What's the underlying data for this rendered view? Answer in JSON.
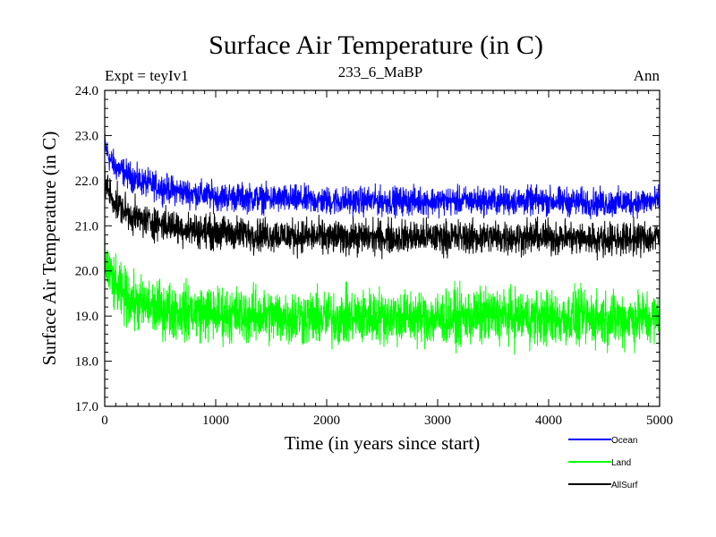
{
  "chart_data": {
    "type": "line",
    "title": "Surface Air Temperature (in C)",
    "subtitle_left": "Expt = teyIv1",
    "subtitle_center": "233_6_MaBP",
    "subtitle_right": "Ann",
    "xlabel": "Time (in years since start)",
    "ylabel": "Surface Air Temperature (in C)",
    "xlim": [
      0,
      5000
    ],
    "ylim": [
      17.0,
      24.0
    ],
    "xticks": [
      0,
      1000,
      2000,
      3000,
      4000,
      5000
    ],
    "xtick_labels": [
      "0",
      "1000",
      "2000",
      "3000",
      "4000",
      "5000"
    ],
    "yticks": [
      17.0,
      18.0,
      19.0,
      20.0,
      21.0,
      22.0,
      23.0,
      24.0
    ],
    "ytick_labels": [
      "17.0",
      "18.0",
      "19.0",
      "20.0",
      "21.0",
      "22.0",
      "23.0",
      "24.0"
    ],
    "legend_position": "below-right",
    "series": [
      {
        "name": "Ocean",
        "color": "#0000ff",
        "x": [
          0,
          50,
          100,
          200,
          300,
          500,
          700,
          1000,
          1500,
          2000,
          2500,
          3000,
          3500,
          4000,
          4500,
          5000
        ],
        "mean": [
          22.8,
          22.45,
          22.3,
          22.15,
          22.0,
          21.85,
          21.75,
          21.65,
          21.6,
          21.55,
          21.55,
          21.55,
          21.55,
          21.55,
          21.5,
          21.55
        ],
        "noise": 0.25
      },
      {
        "name": "Land",
        "color": "#00ff00",
        "x": [
          0,
          50,
          100,
          200,
          300,
          500,
          700,
          1000,
          1500,
          2000,
          2500,
          3000,
          3500,
          4000,
          4500,
          5000
        ],
        "mean": [
          20.2,
          19.9,
          19.6,
          19.4,
          19.25,
          19.15,
          19.1,
          19.05,
          19.0,
          18.95,
          19.0,
          18.95,
          19.0,
          18.95,
          18.95,
          18.95
        ],
        "noise": 0.5
      },
      {
        "name": "AllSurf",
        "color": "#000000",
        "x": [
          0,
          50,
          100,
          200,
          300,
          500,
          700,
          1000,
          1500,
          2000,
          2500,
          3000,
          3500,
          4000,
          4500,
          5000
        ],
        "mean": [
          22.0,
          21.7,
          21.5,
          21.3,
          21.15,
          21.05,
          20.95,
          20.85,
          20.8,
          20.75,
          20.75,
          20.75,
          20.75,
          20.75,
          20.7,
          20.75
        ],
        "noise": 0.3
      }
    ]
  }
}
